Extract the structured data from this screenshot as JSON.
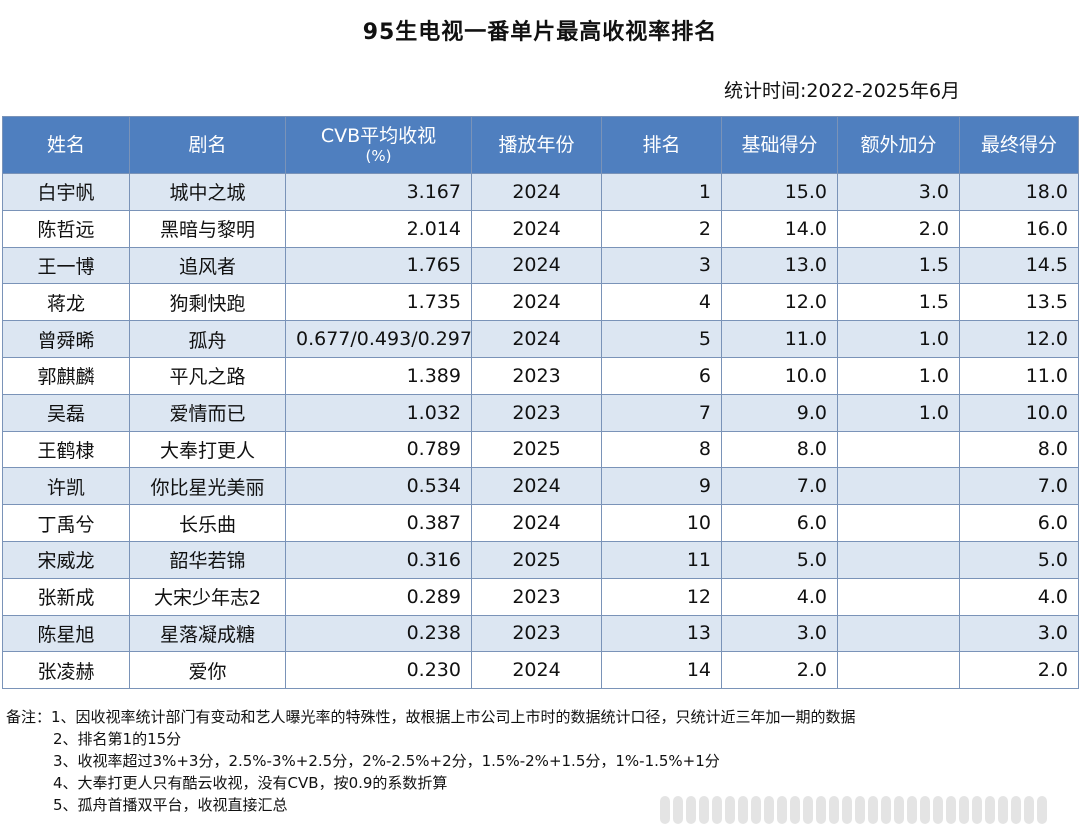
{
  "title": "95生电视一番单片最高收视率排名",
  "stat_time": "统计时间:2022-2025年6月",
  "headers": {
    "name": "姓名",
    "drama": "剧名",
    "cvb": "CVB平均收视",
    "cvb_unit": "(%)",
    "year": "播放年份",
    "rank": "排名",
    "base": "基础得分",
    "extra": "额外加分",
    "final": "最终得分"
  },
  "rows": [
    {
      "name": "白宇帆",
      "drama": "城中之城",
      "cvb": "3.167",
      "year": "2024",
      "rank": "1",
      "base": "15.0",
      "extra": "3.0",
      "final": "18.0"
    },
    {
      "name": "陈哲远",
      "drama": "黑暗与黎明",
      "cvb": "2.014",
      "year": "2024",
      "rank": "2",
      "base": "14.0",
      "extra": "2.0",
      "final": "16.0"
    },
    {
      "name": "王一博",
      "drama": "追风者",
      "cvb": "1.765",
      "year": "2024",
      "rank": "3",
      "base": "13.0",
      "extra": "1.5",
      "final": "14.5"
    },
    {
      "name": "蒋龙",
      "drama": "狗剩快跑",
      "cvb": "1.735",
      "year": "2024",
      "rank": "4",
      "base": "12.0",
      "extra": "1.5",
      "final": "13.5"
    },
    {
      "name": "曾舜晞",
      "drama": "孤舟",
      "cvb": "0.677/0.493/0.297",
      "year": "2024",
      "rank": "5",
      "base": "11.0",
      "extra": "1.0",
      "final": "12.0"
    },
    {
      "name": "郭麒麟",
      "drama": "平凡之路",
      "cvb": "1.389",
      "year": "2023",
      "rank": "6",
      "base": "10.0",
      "extra": "1.0",
      "final": "11.0"
    },
    {
      "name": "吴磊",
      "drama": "爱情而已",
      "cvb": "1.032",
      "year": "2023",
      "rank": "7",
      "base": "9.0",
      "extra": "1.0",
      "final": "10.0"
    },
    {
      "name": "王鹤棣",
      "drama": "大奉打更人",
      "cvb": "0.789",
      "year": "2025",
      "rank": "8",
      "base": "8.0",
      "extra": "",
      "final": "8.0"
    },
    {
      "name": "许凯",
      "drama": "你比星光美丽",
      "cvb": "0.534",
      "year": "2024",
      "rank": "9",
      "base": "7.0",
      "extra": "",
      "final": "7.0"
    },
    {
      "name": "丁禹兮",
      "drama": "长乐曲",
      "cvb": "0.387",
      "year": "2024",
      "rank": "10",
      "base": "6.0",
      "extra": "",
      "final": "6.0"
    },
    {
      "name": "宋威龙",
      "drama": "韶华若锦",
      "cvb": "0.316",
      "year": "2025",
      "rank": "11",
      "base": "5.0",
      "extra": "",
      "final": "5.0"
    },
    {
      "name": "张新成",
      "drama": "大宋少年志2",
      "cvb": "0.289",
      "year": "2023",
      "rank": "12",
      "base": "4.0",
      "extra": "",
      "final": "4.0"
    },
    {
      "name": "陈星旭",
      "drama": "星落凝成糖",
      "cvb": "0.238",
      "year": "2023",
      "rank": "13",
      "base": "3.0",
      "extra": "",
      "final": "3.0"
    },
    {
      "name": "张凌赫",
      "drama": "爱你",
      "cvb": "0.230",
      "year": "2024",
      "rank": "14",
      "base": "2.0",
      "extra": "",
      "final": "2.0"
    }
  ],
  "notes": [
    "备注：1、因收视率统计部门有变动和艺人曝光率的特殊性，故根据上市公司上市时的数据统计口径，只统计近三年加一期的数据",
    "2、排名第1的15分",
    "3、收视率超过3%+3分，2.5%-3%+2.5分，2%-2.5%+2分，1.5%-2%+1.5分，1%-1.5%+1分",
    "4、大奉打更人只有酷云收视，没有CVB，按0.9的系数折算",
    "5、孤舟首播双平台，收视直接汇总"
  ]
}
